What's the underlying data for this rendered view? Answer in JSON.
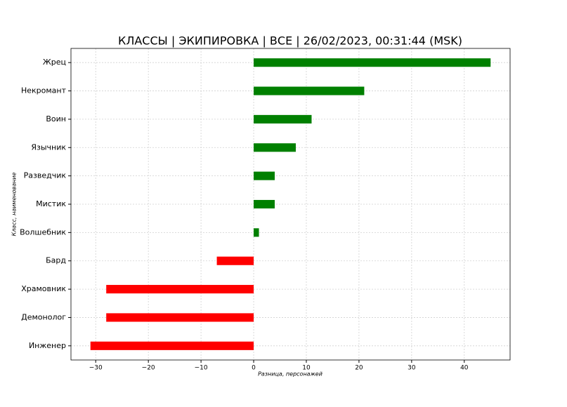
{
  "chart_data": {
    "type": "barh",
    "title": "КЛАССЫ | ЭКИПИРОВКА | ВСЕ | 26/02/2023, 00:31:44 (MSK)",
    "x_label": "Разница, персонажей",
    "y_label": "Класс, наименование",
    "categories": [
      "Жрец",
      "Некромант",
      "Воин",
      "Язычник",
      "Разведчик",
      "Мистик",
      "Волшебник",
      "Бард",
      "Храмовник",
      "Демонолог",
      "Инженер"
    ],
    "values": [
      45,
      21,
      11,
      8,
      4,
      4,
      1,
      -7,
      -28,
      -28,
      -31
    ],
    "colors": [
      "#008000",
      "#008000",
      "#008000",
      "#008000",
      "#008000",
      "#008000",
      "#008000",
      "#ff0000",
      "#ff0000",
      "#ff0000",
      "#ff0000"
    ],
    "xlim": [
      -34.7,
      48.7
    ],
    "xticks": [
      {
        "value": -30,
        "label": "−30"
      },
      {
        "value": -20,
        "label": "−20"
      },
      {
        "value": -10,
        "label": "−10"
      },
      0,
      10,
      20,
      30,
      40
    ],
    "grid": true
  }
}
